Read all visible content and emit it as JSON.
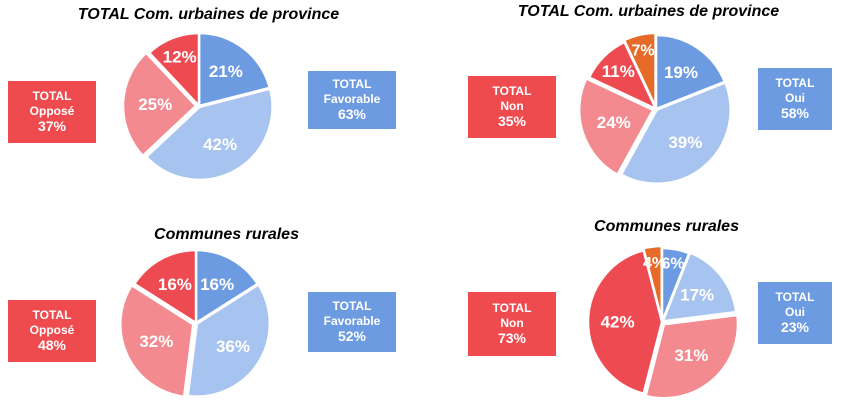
{
  "colors": {
    "fav_dark": "#6d9be2",
    "fav_light": "#a7c3ef",
    "opp_light": "#f38a90",
    "opp_dark": "#ee4a52",
    "orange": "#e66b29",
    "box_red": "#ef4b4f",
    "box_blue": "#6c9be1"
  },
  "chart_data": [
    {
      "type": "pie",
      "title": "TOTAL Com. urbaines de province",
      "slices": [
        {
          "label": "21%",
          "value": 21,
          "color": "#6d9be2"
        },
        {
          "label": "42%",
          "value": 42,
          "color": "#a7c3ef"
        },
        {
          "label": "25%",
          "value": 25,
          "color": "#f38a90"
        },
        {
          "label": "12%",
          "value": 12,
          "color": "#ee4a52"
        }
      ],
      "left_box": {
        "line1": "TOTAL",
        "line2": "Opposé",
        "value": "37%"
      },
      "right_box": {
        "line1": "TOTAL",
        "line2": "Favorable",
        "value": "63%"
      }
    },
    {
      "type": "pie",
      "title": "TOTAL Com. urbaines de province",
      "slices": [
        {
          "label": "19%",
          "value": 19,
          "color": "#6d9be2"
        },
        {
          "label": "39%",
          "value": 39,
          "color": "#a7c3ef"
        },
        {
          "label": "24%",
          "value": 24,
          "color": "#f38a90"
        },
        {
          "label": "11%",
          "value": 11,
          "color": "#ee4a52"
        },
        {
          "label": "7%",
          "value": 7,
          "color": "#e66b29"
        }
      ],
      "left_box": {
        "line1": "TOTAL",
        "line2": "Non",
        "value": "35%"
      },
      "right_box": {
        "line1": "TOTAL",
        "line2": "Oui",
        "value": "58%"
      }
    },
    {
      "type": "pie",
      "title": "Communes rurales",
      "slices": [
        {
          "label": "16%",
          "value": 16,
          "color": "#6d9be2"
        },
        {
          "label": "36%",
          "value": 36,
          "color": "#a7c3ef"
        },
        {
          "label": "32%",
          "value": 32,
          "color": "#f38a90"
        },
        {
          "label": "16%",
          "value": 16,
          "color": "#ee4a52"
        }
      ],
      "left_box": {
        "line1": "TOTAL",
        "line2": "Opposé",
        "value": "48%"
      },
      "right_box": {
        "line1": "TOTAL",
        "line2": "Favorable",
        "value": "52%"
      }
    },
    {
      "type": "pie",
      "title": "Communes rurales",
      "slices": [
        {
          "label": "6%",
          "value": 6,
          "color": "#6d9be2"
        },
        {
          "label": "17%",
          "value": 17,
          "color": "#a7c3ef"
        },
        {
          "label": "31%",
          "value": 31,
          "color": "#f38a90"
        },
        {
          "label": "42%",
          "value": 42,
          "color": "#ee4a52"
        },
        {
          "label": "4%",
          "value": 4,
          "color": "#e66b29"
        }
      ],
      "left_box": {
        "line1": "TOTAL",
        "line2": "Non",
        "value": "73%"
      },
      "right_box": {
        "line1": "TOTAL",
        "line2": "Oui",
        "value": "23%"
      }
    }
  ]
}
